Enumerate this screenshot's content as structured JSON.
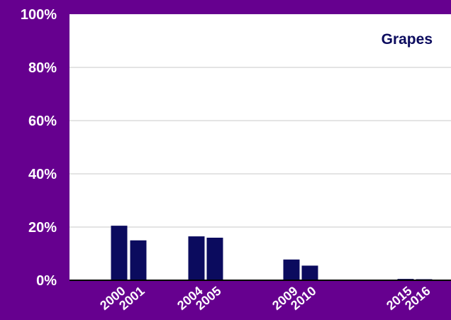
{
  "colors": {
    "background": "#66008f",
    "plot_area": "#ffffff",
    "bar": "#0b0b5e",
    "gridline": "#c8c8c8",
    "text": "#ffffff",
    "title": "#0b0b5e"
  },
  "chart_data": {
    "type": "bar",
    "title": "Grapes",
    "categories": [
      "2000",
      "2001",
      "2004",
      "2005",
      "2009",
      "2010",
      "2015",
      "2016"
    ],
    "values": [
      20.5,
      15,
      16.5,
      16,
      7.8,
      5.5,
      0.5,
      0.4
    ],
    "unit": "%",
    "ylim": [
      0,
      100
    ],
    "yticks": [
      "0%",
      "20%",
      "40%",
      "60%",
      "80%",
      "100%"
    ],
    "ytick_values": [
      0,
      20,
      40,
      60,
      80,
      100
    ],
    "grid": true,
    "legend": "none",
    "xlabel": "",
    "ylabel": ""
  }
}
